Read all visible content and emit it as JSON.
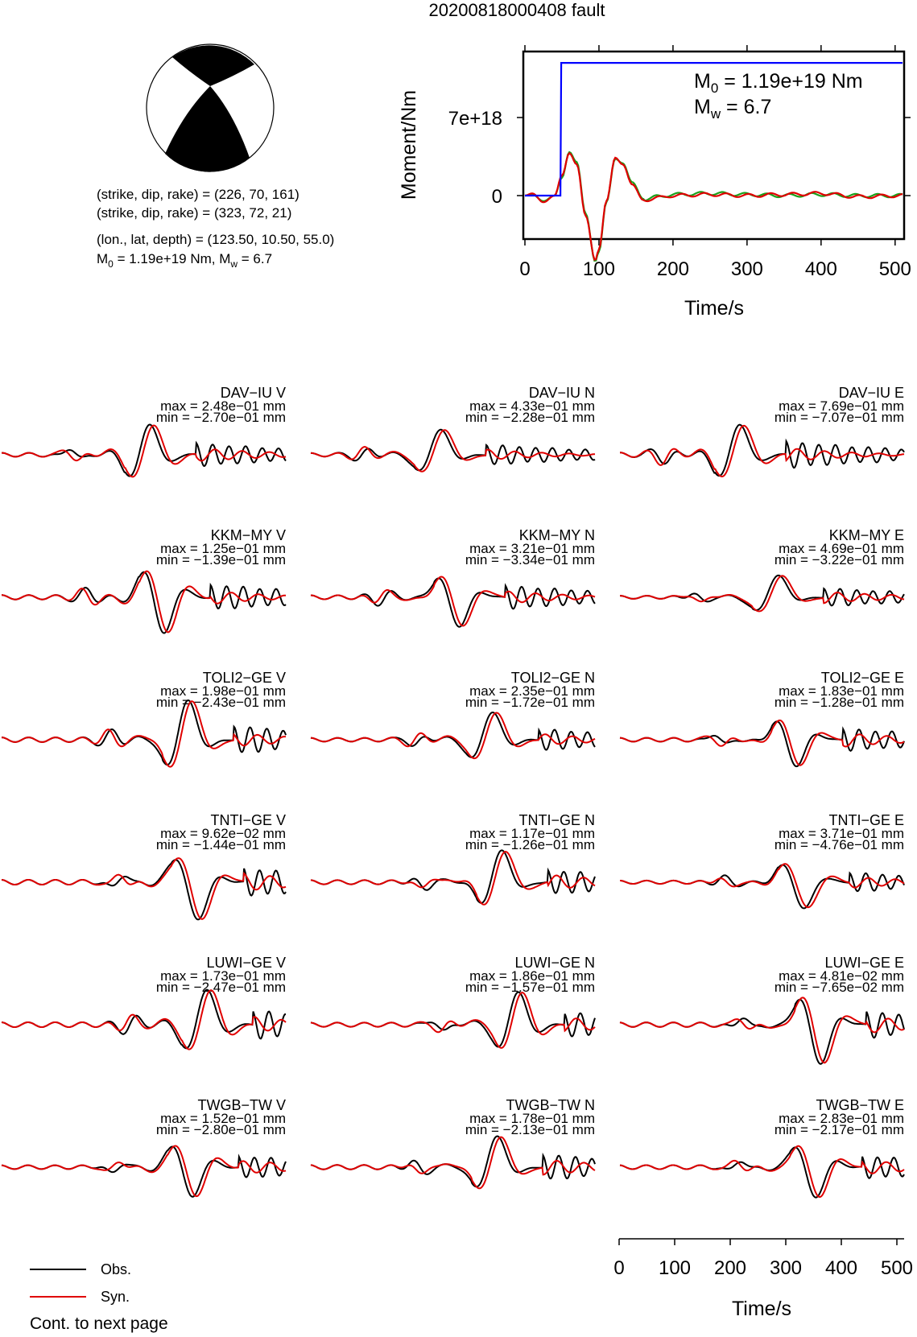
{
  "title": "20200818000408 fault",
  "colors": {
    "observed": "#000000",
    "synthetic": "#e00000",
    "stf": "#0000ff",
    "stf_green": "#1aa01a",
    "beachball": "#000000"
  },
  "mechanism": {
    "plane1": "(strike, dip, rake) = (226, 70, 161)",
    "plane2": "(strike, dip, rake) = (323, 72, 21)",
    "location": "(lon., lat, depth) = (123.50, 10.50, 55.0)",
    "moment_line_m": "M",
    "moment_line_sub0": "0",
    "moment_line_mid": " = 1.19e+19 Nm, M",
    "moment_line_subw": "w",
    "moment_line_end": " = 6.7"
  },
  "stf_panel": {
    "ylabel": "Moment/Nm",
    "xlabel": "Time/s",
    "m0_label_m": "M",
    "m0_label_sub": "0",
    "m0_label_val": " = 1.19e+19 Nm",
    "mw_label_m": "M",
    "mw_label_sub": "w",
    "mw_label_val": " = 6.7",
    "yticks": [
      "7e+18",
      "0"
    ],
    "xticks": [
      "0",
      "100",
      "200",
      "300",
      "400",
      "500"
    ]
  },
  "bottom_axis": {
    "xlabel": "Time/s",
    "xticks": [
      "0",
      "100",
      "200",
      "300",
      "400",
      "500"
    ]
  },
  "legend": {
    "obs": "Obs.",
    "syn": "Syn."
  },
  "footer": "Cont. to next page",
  "chart_data": [
    {
      "type": "line",
      "title": "",
      "xlabel": "Time/s",
      "ylabel": "Moment/Nm",
      "xlim": [
        0,
        510
      ],
      "ylim": [
        -5.5e+18,
        1.9e+19
      ],
      "series": [
        {
          "name": "",
          "color": "blue",
          "x": [
            0,
            48,
            49,
            510
          ],
          "y": [
            0,
            0,
            1.19e+19,
            1.19e+19
          ]
        },
        {
          "name": "",
          "color": "red",
          "x": [
            0,
            10,
            25,
            40,
            50,
            60,
            70,
            82,
            95,
            100,
            110,
            122,
            132,
            145,
            160,
            180,
            200,
            250,
            300,
            350,
            400,
            450,
            510
          ],
          "y": [
            0,
            2e+17,
            -6e+17,
            0,
            1.8e+18,
            3.8e+18,
            2.8e+18,
            -1.8e+18,
            -5.8e+18,
            -4.8e+18,
            -5e+17,
            3.4e+18,
            2.8e+18,
            1e+18,
            -4e+17,
            -2e+17,
            0,
            1e+17,
            0,
            1e+17,
            2e+17,
            -1e+17,
            0
          ]
        },
        {
          "name": "",
          "color": "green",
          "x": [
            0,
            10,
            25,
            40,
            50,
            60,
            70,
            82,
            95,
            100,
            110,
            122,
            132,
            145,
            160,
            180,
            200,
            250,
            300,
            350,
            400,
            450,
            510
          ],
          "y": [
            0,
            1e+17,
            -5e+17,
            0,
            1.6e+18,
            3.9e+18,
            3e+18,
            -1.6e+18,
            -5.9e+18,
            -5e+18,
            -6e+17,
            3.3e+18,
            2.9e+18,
            1.2e+18,
            -3e+17,
            -1e+17,
            1e+17,
            2e+17,
            1e+17,
            0,
            1e+17,
            0,
            0
          ]
        }
      ]
    },
    {
      "type": "line",
      "title": "",
      "xlabel": "Time/s",
      "x_ticks": [
        0,
        100,
        200,
        300,
        400,
        500
      ],
      "legend": [
        "Obs.",
        "Syn."
      ],
      "stations": [
        {
          "label": "DAV−IU V",
          "max": "max = 2.48e−01 mm",
          "min": "min = −2.70e−01 mm",
          "p": [
            60,
            2.6,
            1,
            3.0,
            4.5
          ]
        },
        {
          "label": "DAV−IU N",
          "max": "max = 4.33e−01 mm",
          "min": "min = −2.28e−01 mm",
          "p": [
            52,
            2.3,
            1,
            2.8,
            4.0
          ]
        },
        {
          "label": "DAV−IU E",
          "max": "max = 7.69e−01 mm",
          "min": "min = −7.07e−01 mm",
          "p": [
            48,
            2.5,
            1,
            2.6,
            5.2
          ]
        },
        {
          "label": "KKM−MY V",
          "max": "max = 1.25e−01 mm",
          "min": "min = −1.39e−01 mm",
          "p": [
            66,
            2.6,
            -1,
            3.2,
            5.0
          ]
        },
        {
          "label": "KKM−MY N",
          "max": "max = 3.21e−01 mm",
          "min": "min = −3.34e−01 mm",
          "p": [
            60,
            2.4,
            -1,
            2.8,
            4.6
          ]
        },
        {
          "label": "KKM−MY E",
          "max": "max = 4.69e−01 mm",
          "min": "min = −3.22e−01 mm",
          "p": [
            64,
            2.2,
            1,
            2.7,
            3.6
          ]
        },
        {
          "label": "TOLI2−GE V",
          "max": "max = 1.98e−01 mm",
          "min": "min = −2.43e−01 mm",
          "p": [
            76,
            2.4,
            1,
            3.2,
            5.4
          ]
        },
        {
          "label": "TOLI2−GE N",
          "max": "max = 2.35e−01 mm",
          "min": "min = −1.72e−01 mm",
          "p": [
            74,
            2.4,
            1,
            2.9,
            4.2
          ]
        },
        {
          "label": "TOLI2−GE E",
          "max": "max = 1.83e−01 mm",
          "min": "min = −1.28e−01 mm",
          "p": [
            72,
            2.6,
            -1,
            2.6,
            4.4
          ]
        },
        {
          "label": "TNTI−GE V",
          "max": "max = 9.62e−02 mm",
          "min": "min = −1.44e−01 mm",
          "p": [
            80,
            2.2,
            -1,
            3.0,
            5.6
          ]
        },
        {
          "label": "TNTI−GE N",
          "max": "max = 1.17e−01 mm",
          "min": "min = −1.26e−01 mm",
          "p": [
            78,
            2.4,
            1,
            2.9,
            4.8
          ]
        },
        {
          "label": "TNTI−GE E",
          "max": "max = 3.71e−01 mm",
          "min": "min = −4.76e−01 mm",
          "p": [
            75,
            2.3,
            -1,
            3.1,
            3.8
          ]
        },
        {
          "label": "LUWI−GE V",
          "max": "max = 1.73e−01 mm",
          "min": "min = −2.47e−01 mm",
          "p": [
            84,
            2.5,
            1,
            2.8,
            5.6
          ]
        },
        {
          "label": "LUWI−GE N",
          "max": "max = 1.86e−01 mm",
          "min": "min = −1.57e−01 mm",
          "p": [
            85,
            2.6,
            1,
            3.0,
            4.8
          ]
        },
        {
          "label": "LUWI−GE E",
          "max": "max = 4.81e−02 mm",
          "min": "min = −7.65e−02 mm",
          "p": [
            82,
            2.4,
            -1,
            3.3,
            5.2
          ]
        },
        {
          "label": "TWGB−TW V",
          "max": "max = 1.52e−01 mm",
          "min": "min = −2.80e−01 mm",
          "p": [
            78,
            2.6,
            -1,
            3.0,
            4.4
          ]
        },
        {
          "label": "TWGB−TW N",
          "max": "max = 1.78e−01 mm",
          "min": "min = −2.13e−01 mm",
          "p": [
            76,
            2.4,
            1,
            2.7,
            5.0
          ]
        },
        {
          "label": "TWGB−TW E",
          "max": "max = 2.83e−01 mm",
          "min": "min = −2.17e−01 mm",
          "p": [
            80,
            2.5,
            -1,
            2.9,
            4.6
          ]
        }
      ]
    }
  ]
}
